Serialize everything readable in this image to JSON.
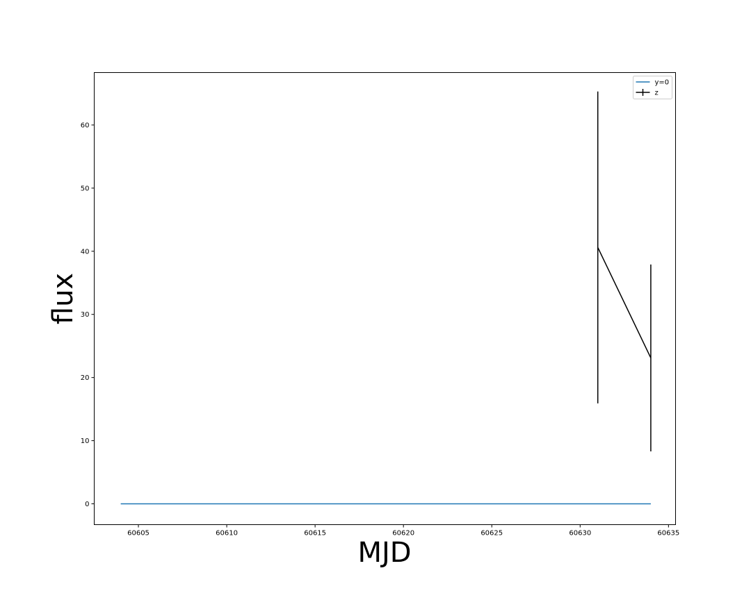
{
  "chart_data": {
    "type": "line",
    "title": "",
    "xlabel": "MJD",
    "ylabel": "flux",
    "xlim": [
      60602.5,
      60635.4
    ],
    "ylim": [
      -3.3,
      68.3
    ],
    "xticks": [
      60605,
      60610,
      60615,
      60620,
      60625,
      60630,
      60635
    ],
    "yticks": [
      0,
      10,
      20,
      30,
      40,
      50,
      60
    ],
    "grid": false,
    "legend_position": "top-right",
    "series": [
      {
        "name": "y=0",
        "kind": "line",
        "color": "#1f77b4",
        "x": [
          60604,
          60634
        ],
        "y": [
          0,
          0
        ]
      },
      {
        "name": "z",
        "kind": "errorbar",
        "color": "#000000",
        "x": [
          60631,
          60634
        ],
        "y": [
          40.6,
          23.1
        ],
        "yerr": [
          24.7,
          14.8
        ]
      }
    ]
  }
}
